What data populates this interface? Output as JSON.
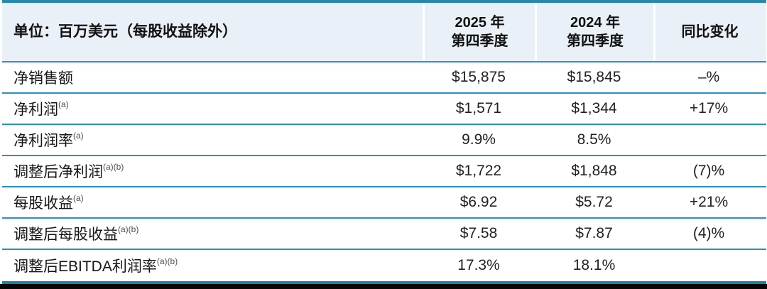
{
  "table": {
    "unit_header": "单位：百万美元（每股收益除外）",
    "columns": {
      "q4_2025": {
        "line1": "2025 年",
        "line2": "第四季度"
      },
      "q4_2024": {
        "line1": "2024 年",
        "line2": "第四季度"
      },
      "yoy": {
        "label": "同比变化"
      }
    },
    "rows": [
      {
        "label": "净销售额",
        "footnote": "",
        "q4_2025": "$15,875",
        "q4_2024": "$15,845",
        "yoy": "–%"
      },
      {
        "label": "净利润",
        "footnote": "(a)",
        "q4_2025": "$1,571",
        "q4_2024": "$1,344",
        "yoy": "+17%"
      },
      {
        "label": "净利润率",
        "footnote": "(a)",
        "q4_2025": "9.9%",
        "q4_2024": "8.5%",
        "yoy": ""
      },
      {
        "label": "调整后净利润",
        "footnote": "(a)(b)",
        "q4_2025": "$1,722",
        "q4_2024": "$1,848",
        "yoy": "(7)%"
      },
      {
        "label": "每股收益",
        "footnote": "(a)",
        "q4_2025": "$6.92",
        "q4_2024": "$5.72",
        "yoy": "+21%"
      },
      {
        "label": "调整后每股收益",
        "footnote": "(a)(b)",
        "q4_2025": "$7.58",
        "q4_2024": "$7.87",
        "yoy": "(4)%"
      },
      {
        "label": "调整后EBITDA利润率",
        "footnote": "(a)(b)",
        "q4_2025": "17.3%",
        "q4_2024": "18.1%",
        "yoy": ""
      }
    ]
  },
  "colors": {
    "top_border": "#2787af",
    "row_separator": "#2e8fc2",
    "header_background": "#e9f0f8",
    "bottom_line": "#1c7fa9",
    "bottom_bar": "#050505"
  }
}
